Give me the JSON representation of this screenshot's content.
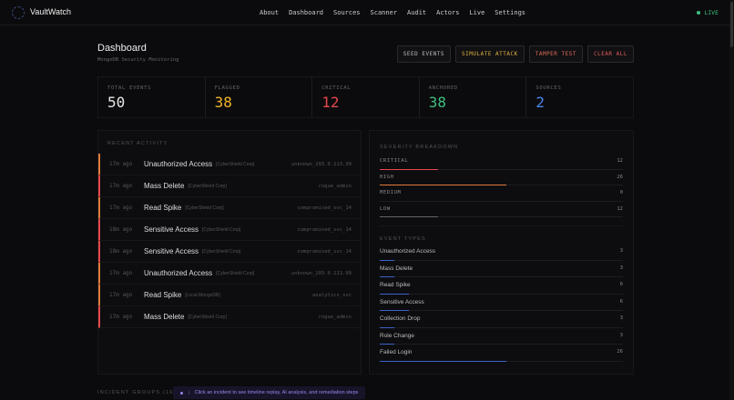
{
  "app": {
    "name": "VaultWatch",
    "live_label": "LIVE"
  },
  "nav": [
    "About",
    "Dashboard",
    "Sources",
    "Scanner",
    "Audit",
    "Actors",
    "Live",
    "Settings"
  ],
  "header": {
    "title": "Dashboard",
    "subtitle": "MongoDB Security Monitoring"
  },
  "actions": [
    {
      "label": "SEED EVENTS",
      "color": "#bbbbbb"
    },
    {
      "label": "SIMULATE ATTACK",
      "color": "#e0b040"
    },
    {
      "label": "TAMPER TEST",
      "color": "#e06a5a"
    },
    {
      "label": "CLEAR ALL",
      "color": "#e05a5a"
    }
  ],
  "stats": [
    {
      "label": "TOTAL EVENTS",
      "value": "50",
      "color": "#e8e8e8"
    },
    {
      "label": "FLAGGED",
      "value": "38",
      "color": "#f0b429"
    },
    {
      "label": "CRITICAL",
      "value": "12",
      "color": "#e5484d"
    },
    {
      "label": "ANCHORED",
      "value": "38",
      "color": "#3fbf7f"
    },
    {
      "label": "SOURCES",
      "value": "2",
      "color": "#4a86e8"
    }
  ],
  "activity": {
    "title": "RECENT ACTIVITY",
    "rows": [
      {
        "time": "17m ago",
        "name": "Unauthorized Access",
        "source": "[CyberShield Corp]",
        "actor": "unknown_203.0.113.99",
        "color": "#e07b39"
      },
      {
        "time": "17m ago",
        "name": "Mass Delete",
        "source": "[CyberShield Corp]",
        "actor": "rogue_admin",
        "color": "#e5484d"
      },
      {
        "time": "17m ago",
        "name": "Read Spike",
        "source": "[CyberShield Corp]",
        "actor": "compromised_svc_14",
        "color": "#e07b39"
      },
      {
        "time": "18m ago",
        "name": "Sensitive Access",
        "source": "[CyberShield Corp]",
        "actor": "compromised_svc_14",
        "color": "#e5484d"
      },
      {
        "time": "18m ago",
        "name": "Sensitive Access",
        "source": "[CyberShield Corp]",
        "actor": "compromised_svc_14",
        "color": "#e5484d"
      },
      {
        "time": "17m ago",
        "name": "Unauthorized Access",
        "source": "[CyberShield Corp]",
        "actor": "unknown_203.0.113.99",
        "color": "#e07b39"
      },
      {
        "time": "17m ago",
        "name": "Read Spike",
        "source": "[Local MongoDB]",
        "actor": "analytics_svc",
        "color": "#e07b39"
      },
      {
        "time": "17m ago",
        "name": "Mass Delete",
        "source": "[CyberShield Corp]",
        "actor": "rogue_admin",
        "color": "#e5484d"
      }
    ]
  },
  "severity": {
    "title": "SEVERITY BREAKDOWN",
    "max": 50,
    "items": [
      {
        "label": "CRITICAL",
        "value": 12,
        "color": "#e5484d"
      },
      {
        "label": "HIGH",
        "value": 26,
        "color": "#e07b39"
      },
      {
        "label": "MEDIUM",
        "value": 0,
        "color": "#888888"
      },
      {
        "label": "LOW",
        "value": 12,
        "color": "#666666"
      }
    ]
  },
  "event_types": {
    "title": "EVENT TYPES",
    "max": 50,
    "items": [
      {
        "label": "Unauthorized Access",
        "value": 3
      },
      {
        "label": "Mass Delete",
        "value": 3
      },
      {
        "label": "Read Spike",
        "value": 6
      },
      {
        "label": "Sensitive Access",
        "value": 6
      },
      {
        "label": "Collection Drop",
        "value": 3
      },
      {
        "label": "Role Change",
        "value": 3
      },
      {
        "label": "Failed Login",
        "value": 26
      }
    ]
  },
  "incidents": {
    "label": "INCIDENT GROUPS (16)",
    "hint_arrow": "↓",
    "hint": "Click an incident to see timeline replay, AI analysis, and remediation steps"
  }
}
